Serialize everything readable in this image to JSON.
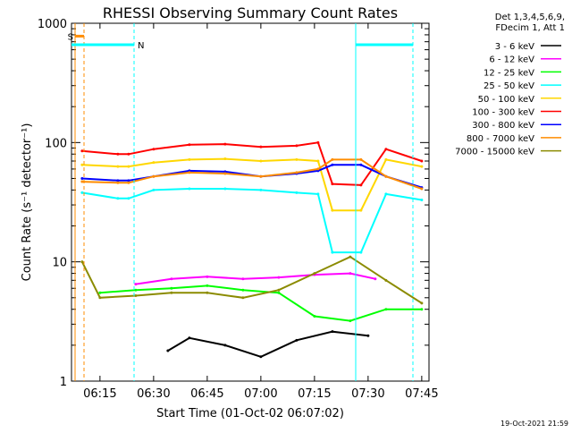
{
  "chart_data": {
    "type": "line",
    "title": "RHESSI Observing Summary Count Rates",
    "xlabel": "Start Time (01-Oct-02 06:07:02)",
    "ylabel": "Count Rate (s⁻¹ detector⁻¹)",
    "y_scale": "log",
    "ylim": [
      1,
      1000
    ],
    "xlim_minutes_after_start": [
      0,
      100
    ],
    "x_tick_labels": [
      "06:15",
      "06:30",
      "06:45",
      "07:00",
      "07:15",
      "07:30",
      "07:45"
    ],
    "x_tick_times": [
      "06:15",
      "06:30",
      "06:45",
      "07:00",
      "07:15",
      "07:30",
      "07:45"
    ],
    "y_tick_labels": [
      "1",
      "10",
      "100",
      "1000"
    ],
    "legend_header": [
      "Det 1,3,4,5,6,9,",
      "FDecim 1, Att 1"
    ],
    "legend_placement": "right",
    "timestamp": "19-Oct-2021 21:59",
    "markers": [
      {
        "label": "S",
        "color": "#ff8c00"
      },
      {
        "label": "N",
        "color": "#00ffff"
      }
    ],
    "series": [
      {
        "name": "3 - 6 keV",
        "color": "#000000",
        "points": [
          [
            "06:34",
            1.8
          ],
          [
            "06:40",
            2.3
          ],
          [
            "06:50",
            2.0
          ],
          [
            "07:00",
            1.6
          ],
          [
            "07:10",
            2.2
          ],
          [
            "07:20",
            2.6
          ],
          [
            "07:30",
            2.4
          ]
        ]
      },
      {
        "name": "6 - 12 keV",
        "color": "#ff00ff",
        "points": [
          [
            "06:25",
            6.5
          ],
          [
            "06:35",
            7.2
          ],
          [
            "06:45",
            7.5
          ],
          [
            "06:55",
            7.2
          ],
          [
            "07:05",
            7.4
          ],
          [
            "07:15",
            7.8
          ],
          [
            "07:25",
            8.0
          ],
          [
            "07:32",
            7.2
          ]
        ]
      },
      {
        "name": "12 - 25 keV",
        "color": "#00ff00",
        "points": [
          [
            "06:15",
            5.5
          ],
          [
            "06:25",
            5.8
          ],
          [
            "06:35",
            6.0
          ],
          [
            "06:45",
            6.3
          ],
          [
            "06:55",
            5.8
          ],
          [
            "07:05",
            5.5
          ],
          [
            "07:15",
            3.5
          ],
          [
            "07:25",
            3.2
          ],
          [
            "07:35",
            4.0
          ],
          [
            "07:45",
            4.0
          ]
        ]
      },
      {
        "name": "25 - 50 keV",
        "color": "#00ffff",
        "points": [
          [
            "06:10",
            38
          ],
          [
            "06:20",
            34
          ],
          [
            "06:23",
            34
          ],
          [
            "06:30",
            40
          ],
          [
            "06:40",
            41
          ],
          [
            "06:50",
            41
          ],
          [
            "07:00",
            40
          ],
          [
            "07:10",
            38
          ],
          [
            "07:16",
            37
          ],
          [
            "07:20",
            12
          ],
          [
            "07:28",
            12
          ],
          [
            "07:35",
            37
          ],
          [
            "07:45",
            33
          ]
        ]
      },
      {
        "name": "50 - 100 keV",
        "color": "#ffd700",
        "points": [
          [
            "06:10",
            65
          ],
          [
            "06:20",
            63
          ],
          [
            "06:23",
            63
          ],
          [
            "06:30",
            68
          ],
          [
            "06:40",
            72
          ],
          [
            "06:50",
            73
          ],
          [
            "07:00",
            70
          ],
          [
            "07:10",
            72
          ],
          [
            "07:16",
            70
          ],
          [
            "07:20",
            27
          ],
          [
            "07:28",
            27
          ],
          [
            "07:35",
            72
          ],
          [
            "07:45",
            63
          ]
        ]
      },
      {
        "name": "100 - 300 keV",
        "color": "#ff0000",
        "points": [
          [
            "06:10",
            85
          ],
          [
            "06:20",
            80
          ],
          [
            "06:23",
            80
          ],
          [
            "06:30",
            88
          ],
          [
            "06:40",
            96
          ],
          [
            "06:50",
            97
          ],
          [
            "07:00",
            92
          ],
          [
            "07:10",
            94
          ],
          [
            "07:16",
            100
          ],
          [
            "07:20",
            45
          ],
          [
            "07:28",
            44
          ],
          [
            "07:35",
            88
          ],
          [
            "07:45",
            70
          ]
        ]
      },
      {
        "name": "300 - 800 keV",
        "color": "#0000ff",
        "points": [
          [
            "06:10",
            50
          ],
          [
            "06:20",
            48
          ],
          [
            "06:23",
            48
          ],
          [
            "06:30",
            52
          ],
          [
            "06:40",
            58
          ],
          [
            "06:50",
            57
          ],
          [
            "07:00",
            52
          ],
          [
            "07:10",
            55
          ],
          [
            "07:16",
            58
          ],
          [
            "07:20",
            65
          ],
          [
            "07:28",
            65
          ],
          [
            "07:35",
            52
          ],
          [
            "07:45",
            42
          ]
        ]
      },
      {
        "name": "800 - 7000 keV",
        "color": "#ff8c00",
        "points": [
          [
            "06:10",
            47
          ],
          [
            "06:20",
            46
          ],
          [
            "06:23",
            46
          ],
          [
            "06:30",
            52
          ],
          [
            "06:40",
            56
          ],
          [
            "06:50",
            55
          ],
          [
            "07:00",
            52
          ],
          [
            "07:10",
            56
          ],
          [
            "07:16",
            60
          ],
          [
            "07:20",
            72
          ],
          [
            "07:28",
            72
          ],
          [
            "07:35",
            52
          ],
          [
            "07:45",
            41
          ]
        ]
      },
      {
        "name": "7000 - 15000 keV",
        "color": "#8b8b00",
        "points": [
          [
            "06:10",
            10
          ],
          [
            "06:15",
            5.0
          ],
          [
            "06:25",
            5.2
          ],
          [
            "06:35",
            5.5
          ],
          [
            "06:45",
            5.5
          ],
          [
            "06:55",
            5.0
          ],
          [
            "07:05",
            5.8
          ],
          [
            "07:15",
            8.0
          ],
          [
            "07:25",
            11.0
          ],
          [
            "07:35",
            7.0
          ],
          [
            "07:45",
            4.5
          ]
        ]
      }
    ]
  }
}
